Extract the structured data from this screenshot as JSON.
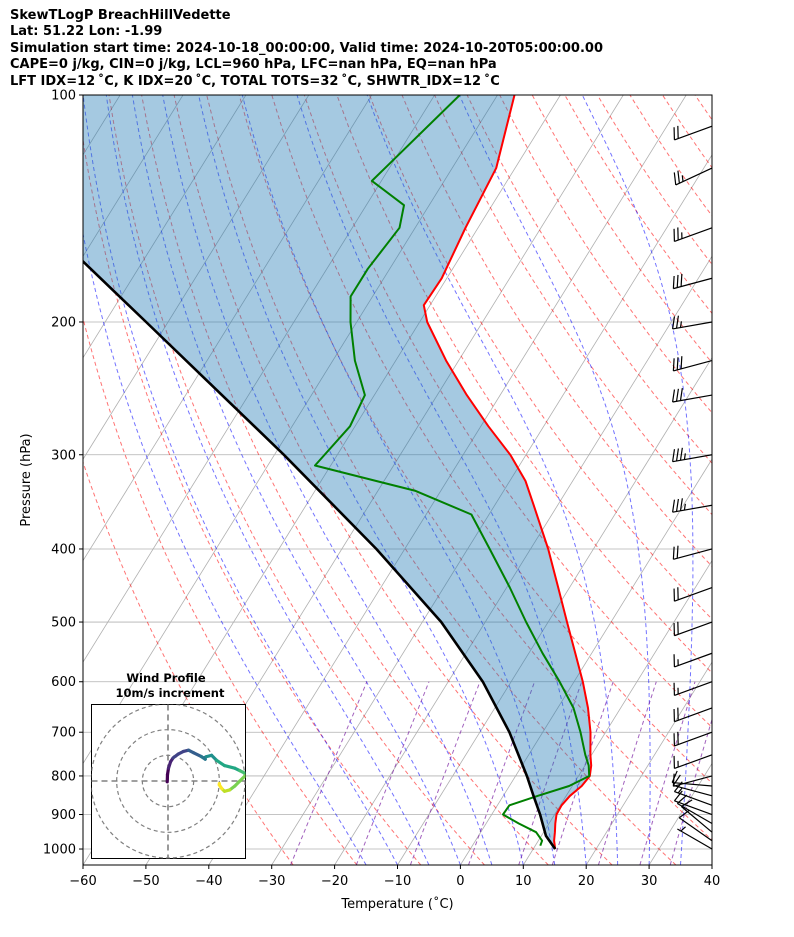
{
  "header": {
    "line1": "SkewTLogP BreachHillVedette",
    "line2": "Lat: 51.22   Lon: -1.99",
    "line3": "Simulation start time: 2024-10-18_00:00:00, Valid time: 2024-10-20T05:00:00.00",
    "line4": "CAPE=0 j/kg, CIN=0 j/kg, LCL=960 hPa, LFC=nan hPa, EQ=nan hPa",
    "line5": "LFT IDX=12 ˚C, K IDX=20 ˚C, TOTAL TOTS=32 ˚C, SHWTR_IDX=12 ˚C"
  },
  "chart_data": {
    "type": "line",
    "chart_kind": "skew-t log-p diagram",
    "xlabel": "Temperature (˚C)",
    "ylabel": "Pressure (hPa)",
    "xlim": [
      -60,
      40
    ],
    "ylim": [
      1050,
      100
    ],
    "y_scale": "log",
    "grid": true,
    "x_ticks": [
      "−60",
      "−50",
      "−40",
      "−30",
      "−20",
      "−10",
      "0",
      "10",
      "20",
      "30",
      "40"
    ],
    "x_tick_values": [
      -60,
      -50,
      -40,
      -30,
      -20,
      -10,
      0,
      10,
      20,
      30,
      40
    ],
    "y_ticks": [
      "1000",
      "900",
      "800",
      "700",
      "600",
      "500",
      "400",
      "300",
      "200",
      "100"
    ],
    "y_tick_values": [
      1000,
      900,
      800,
      700,
      600,
      500,
      400,
      300,
      200,
      100
    ],
    "series": [
      {
        "role": "temperature",
        "color": "#ff0000",
        "points": [
          {
            "p": 1000,
            "t": 13.5
          },
          {
            "p": 975,
            "t": 12.5
          },
          {
            "p": 950,
            "t": 11.8
          },
          {
            "p": 925,
            "t": 11.0
          },
          {
            "p": 900,
            "t": 10.3
          },
          {
            "p": 875,
            "t": 10.2
          },
          {
            "p": 850,
            "t": 10.6
          },
          {
            "p": 825,
            "t": 11.5
          },
          {
            "p": 800,
            "t": 11.8
          },
          {
            "p": 775,
            "t": 11.0
          },
          {
            "p": 750,
            "t": 9.8
          },
          {
            "p": 700,
            "t": 7.6
          },
          {
            "p": 650,
            "t": 4.8
          },
          {
            "p": 600,
            "t": 1.4
          },
          {
            "p": 550,
            "t": -2.6
          },
          {
            "p": 500,
            "t": -7.0
          },
          {
            "p": 450,
            "t": -11.8
          },
          {
            "p": 400,
            "t": -17.2
          },
          {
            "p": 350,
            "t": -23.8
          },
          {
            "p": 325,
            "t": -27.5
          },
          {
            "p": 300,
            "t": -32.5
          },
          {
            "p": 275,
            "t": -38.8
          },
          {
            "p": 250,
            "t": -45.3
          },
          {
            "p": 225,
            "t": -52.0
          },
          {
            "p": 200,
            "t": -58.8
          },
          {
            "p": 190,
            "t": -61.0
          },
          {
            "p": 175,
            "t": -60.8
          },
          {
            "p": 150,
            "t": -62.0
          },
          {
            "p": 125,
            "t": -63.0
          },
          {
            "p": 100,
            "t": -67.3
          }
        ]
      },
      {
        "role": "dewpoint",
        "color": "#008000",
        "points": [
          {
            "p": 990,
            "t": 10.8
          },
          {
            "p": 975,
            "t": 10.6
          },
          {
            "p": 950,
            "t": 8.8
          },
          {
            "p": 925,
            "t": 5.2
          },
          {
            "p": 900,
            "t": 1.8
          },
          {
            "p": 875,
            "t": 1.9
          },
          {
            "p": 850,
            "t": 5.5
          },
          {
            "p": 825,
            "t": 9.5
          },
          {
            "p": 800,
            "t": 11.7
          },
          {
            "p": 775,
            "t": 10.6
          },
          {
            "p": 750,
            "t": 9.0
          },
          {
            "p": 700,
            "t": 6.0
          },
          {
            "p": 650,
            "t": 2.5
          },
          {
            "p": 600,
            "t": -2.3
          },
          {
            "p": 550,
            "t": -7.8
          },
          {
            "p": 500,
            "t": -13.5
          },
          {
            "p": 450,
            "t": -19.5
          },
          {
            "p": 400,
            "t": -26.5
          },
          {
            "p": 360,
            "t": -32.8
          },
          {
            "p": 335,
            "t": -44.0
          },
          {
            "p": 310,
            "t": -62.5
          },
          {
            "p": 275,
            "t": -60.8
          },
          {
            "p": 250,
            "t": -61.5
          },
          {
            "p": 225,
            "t": -66.5
          },
          {
            "p": 200,
            "t": -71.0
          },
          {
            "p": 185,
            "t": -73.5
          },
          {
            "p": 170,
            "t": -73.5
          },
          {
            "p": 150,
            "t": -72.5
          },
          {
            "p": 140,
            "t": -74.0
          },
          {
            "p": 130,
            "t": -81.5
          },
          {
            "p": 100,
            "t": -76.0
          }
        ]
      },
      {
        "role": "parcel",
        "color": "#000000",
        "points": [
          {
            "p": 1000,
            "t": 13.5
          },
          {
            "p": 960,
            "t": 10.7
          },
          {
            "p": 900,
            "t": 7.7
          },
          {
            "p": 850,
            "t": 4.8
          },
          {
            "p": 800,
            "t": 1.8
          },
          {
            "p": 700,
            "t": -5.3
          },
          {
            "p": 600,
            "t": -14.5
          },
          {
            "p": 500,
            "t": -27.0
          },
          {
            "p": 400,
            "t": -44.5
          },
          {
            "p": 300,
            "t": -68.5
          },
          {
            "p": 200,
            "t": -103.5
          },
          {
            "p": 100,
            "t": -163.5
          }
        ]
      }
    ],
    "wind_barbs": [
      {
        "p": 1000,
        "dir": 300,
        "kt": 5
      },
      {
        "p": 975,
        "dir": 305,
        "kt": 10
      },
      {
        "p": 950,
        "dir": 310,
        "kt": 10
      },
      {
        "p": 925,
        "dir": 300,
        "kt": 10
      },
      {
        "p": 900,
        "dir": 290,
        "kt": 10
      },
      {
        "p": 875,
        "dir": 290,
        "kt": 15
      },
      {
        "p": 850,
        "dir": 285,
        "kt": 10
      },
      {
        "p": 825,
        "dir": 275,
        "kt": 10
      },
      {
        "p": 800,
        "dir": 255,
        "kt": 10
      },
      {
        "p": 750,
        "dir": 250,
        "kt": 15
      },
      {
        "p": 700,
        "dir": 250,
        "kt": 20
      },
      {
        "p": 650,
        "dir": 250,
        "kt": 20
      },
      {
        "p": 600,
        "dir": 250,
        "kt": 15
      },
      {
        "p": 550,
        "dir": 250,
        "kt": 15
      },
      {
        "p": 500,
        "dir": 250,
        "kt": 20
      },
      {
        "p": 450,
        "dir": 250,
        "kt": 20
      },
      {
        "p": 400,
        "dir": 255,
        "kt": 20
      },
      {
        "p": 350,
        "dir": 260,
        "kt": 35
      },
      {
        "p": 300,
        "dir": 260,
        "kt": 35
      },
      {
        "p": 250,
        "dir": 260,
        "kt": 30
      },
      {
        "p": 225,
        "dir": 255,
        "kt": 30
      },
      {
        "p": 200,
        "dir": 260,
        "kt": 25
      },
      {
        "p": 175,
        "dir": 255,
        "kt": 30
      },
      {
        "p": 150,
        "dir": 250,
        "kt": 25
      },
      {
        "p": 125,
        "dir": 245,
        "kt": 25
      },
      {
        "p": 110,
        "dir": 250,
        "kt": 20
      }
    ],
    "inset": {
      "title_line1": "Wind Profile",
      "title_line2": "10m/s increment",
      "type": "hodograph",
      "colormap": "viridis",
      "rings_ms": [
        10,
        20,
        30
      ],
      "range_ms": 30,
      "u": [
        -0.3,
        -0.2,
        0.2,
        1.0,
        2.0,
        4.0,
        6.0,
        8.0,
        10.0,
        13.0,
        14.5,
        14.0,
        15.0,
        17.0,
        19.0,
        22.0,
        26.0,
        28.0,
        30.0,
        30.0,
        28.0,
        26.0,
        24.0,
        22.0,
        21.0,
        20.0,
        20.0
      ],
      "v": [
        -0.3,
        2.5,
        5.0,
        7.5,
        9.0,
        10.5,
        11.5,
        12.0,
        11.0,
        9.5,
        8.5,
        9.0,
        9.5,
        10.0,
        8.0,
        6.0,
        5.0,
        4.0,
        3.0,
        2.0,
        0.0,
        -2.0,
        -3.5,
        -4.0,
        -3.0,
        -1.5,
        -1.0
      ]
    }
  }
}
